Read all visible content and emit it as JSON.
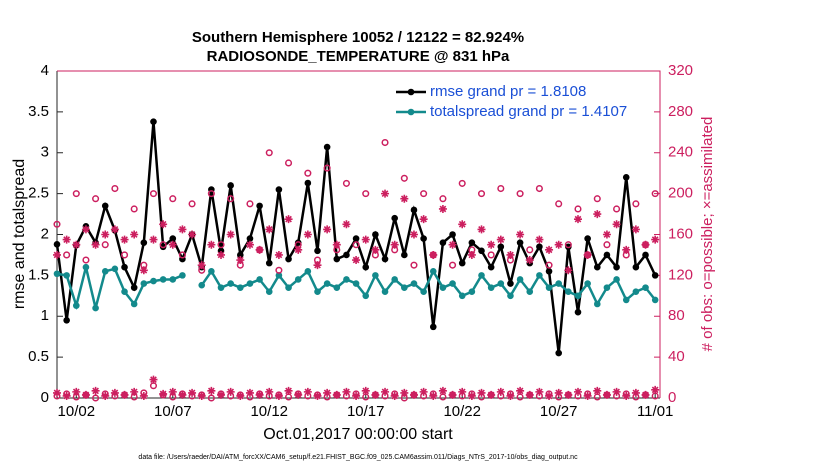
{
  "chart_data": {
    "type": "line",
    "title": "Southern Hemisphere 10052 / 12122 = 82.924%",
    "subtitle": "RADIOSONDE_TEMPERATURE @ 831 hPa",
    "y_label": "rmse and totalspread",
    "y2_label": "# of obs: o=possible; ×=assimilated",
    "x_label": "Oct.01,2017 00:00:00 start",
    "footnote": "data file: /Users/raeder/DAI/ATM_forcXX/CAM6_setup/f.e21.FHIST_BGC.f09_025.CAM6assim.011/Diags_NTrS_2017-10/obs_diag_output.nc",
    "x": [
      1,
      1.5,
      2,
      2.5,
      3,
      3.5,
      4,
      4.5,
      5,
      5.5,
      6,
      6.5,
      7,
      7.5,
      8,
      8.5,
      9,
      9.5,
      10,
      10.5,
      11,
      11.5,
      12,
      12.5,
      13,
      13.5,
      14,
      14.5,
      15,
      15.5,
      16,
      16.5,
      17,
      17.5,
      18,
      18.5,
      19,
      19.5,
      20,
      20.5,
      21,
      21.5,
      22,
      22.5,
      23,
      23.5,
      24,
      24.5,
      25,
      25.5,
      26,
      26.5,
      27,
      27.5,
      28,
      28.5,
      29,
      29.5,
      30,
      30.5,
      31,
      31.5,
      32
    ],
    "xlim": [
      1,
      32.25
    ],
    "xticks": [
      {
        "value": 2,
        "label": "10/02"
      },
      {
        "value": 7,
        "label": "10/07"
      },
      {
        "value": 12,
        "label": "10/12"
      },
      {
        "value": 17,
        "label": "10/17"
      },
      {
        "value": 22,
        "label": "10/22"
      },
      {
        "value": 27,
        "label": "10/27"
      },
      {
        "value": 32,
        "label": "11/01"
      }
    ],
    "ylim": [
      0,
      4
    ],
    "yticks": [
      0,
      0.5,
      1,
      1.5,
      2,
      2.5,
      3,
      3.5,
      4
    ],
    "y2lim": [
      0,
      320
    ],
    "y2ticks": [
      0,
      40,
      80,
      120,
      160,
      200,
      240,
      280,
      320
    ],
    "legend": "upper right",
    "series": [
      {
        "name": "rmse grand pr = 1.8108",
        "color": "#000000",
        "marker": "dot",
        "values": [
          1.88,
          0.95,
          1.87,
          2.1,
          1.9,
          2.35,
          2.05,
          1.6,
          1.35,
          1.9,
          3.38,
          1.85,
          1.95,
          1.7,
          2.0,
          1.6,
          2.55,
          1.8,
          2.6,
          1.75,
          1.95,
          2.35,
          1.65,
          2.55,
          1.7,
          1.9,
          2.63,
          1.8,
          3.07,
          1.7,
          1.75,
          1.95,
          1.6,
          2.0,
          1.7,
          2.2,
          1.75,
          2.3,
          1.95,
          0.87,
          1.9,
          2.0,
          1.65,
          1.9,
          1.8,
          1.6,
          1.85,
          1.4,
          1.9,
          1.65,
          1.85,
          1.55,
          0.55,
          1.85,
          1.05,
          1.95,
          1.6,
          1.75,
          1.6,
          2.7,
          1.6,
          1.75,
          1.5
        ]
      },
      {
        "name": "totalspread grand pr = 1.4107",
        "color": "#138a8c",
        "marker": "dot",
        "values": [
          1.52,
          1.5,
          1.13,
          1.6,
          1.1,
          1.55,
          1.58,
          1.3,
          1.15,
          1.4,
          1.43,
          1.45,
          1.45,
          1.5,
          null,
          1.38,
          1.55,
          1.35,
          1.4,
          1.35,
          1.4,
          1.45,
          1.3,
          1.5,
          1.35,
          1.45,
          1.55,
          1.3,
          1.4,
          1.35,
          1.45,
          1.4,
          1.25,
          1.5,
          1.3,
          1.45,
          1.35,
          1.4,
          1.3,
          1.55,
          1.35,
          1.4,
          1.25,
          1.3,
          1.5,
          1.35,
          1.4,
          1.25,
          1.45,
          1.3,
          1.5,
          1.35,
          1.4,
          1.3,
          1.25,
          1.4,
          1.15,
          1.35,
          1.45,
          1.2,
          1.3,
          1.35,
          1.2
        ]
      },
      {
        "color": "#cc1f5f",
        "marker": "circle",
        "axis": "y2",
        "values": [
          170,
          140,
          200,
          135,
          195,
          150,
          205,
          140,
          185,
          130,
          200,
          150,
          195,
          140,
          190,
          125,
          200,
          150,
          195,
          130,
          190,
          145,
          240,
          125,
          230,
          150,
          220,
          135,
          225,
          145,
          210,
          150,
          200,
          140,
          250,
          145,
          215,
          130,
          200,
          140,
          195,
          130,
          210,
          145,
          200,
          140,
          205,
          135,
          200,
          145,
          205,
          130,
          190,
          150,
          185,
          140,
          195,
          150,
          185,
          140,
          190,
          150,
          200
        ]
      },
      {
        "color": "#cc1f5f",
        "marker": "asterisk",
        "axis": "y2",
        "values": [
          140,
          155,
          150,
          165,
          150,
          160,
          165,
          155,
          160,
          125,
          155,
          170,
          150,
          165,
          160,
          130,
          150,
          140,
          160,
          135,
          150,
          145,
          165,
          140,
          175,
          145,
          160,
          130,
          165,
          150,
          170,
          135,
          155,
          145,
          200,
          150,
          195,
          160,
          175,
          140,
          185,
          150,
          170,
          140,
          165,
          150,
          155,
          140,
          160,
          135,
          155,
          145,
          150,
          125,
          175,
          140,
          180,
          160,
          170,
          145,
          165,
          150,
          155
        ]
      },
      {
        "color": "#cc1f5f",
        "marker": "circle",
        "axis": "y2",
        "values": [
          2,
          4,
          1,
          3,
          0,
          4,
          2,
          3,
          1,
          5,
          12,
          3,
          1,
          4,
          2,
          3,
          0,
          4,
          2,
          3,
          1,
          4,
          2,
          3,
          1,
          4,
          2,
          3,
          1,
          3,
          2,
          4,
          1,
          3,
          2,
          4,
          0,
          3,
          2,
          4,
          1,
          3,
          2,
          4,
          1,
          3,
          2,
          4,
          1,
          3,
          2,
          4,
          1,
          3,
          2,
          4,
          1,
          3,
          2,
          4,
          1,
          3,
          2
        ]
      },
      {
        "color": "#cc1f5f",
        "marker": "asterisk",
        "axis": "y2",
        "values": [
          5,
          2,
          6,
          3,
          7,
          2,
          5,
          3,
          6,
          2,
          18,
          4,
          6,
          3,
          5,
          2,
          7,
          3,
          6,
          2,
          5,
          3,
          6,
          2,
          7,
          3,
          6,
          2,
          5,
          3,
          6,
          2,
          7,
          3,
          6,
          2,
          5,
          3,
          6,
          2,
          7,
          3,
          6,
          2,
          5,
          3,
          6,
          2,
          7,
          3,
          6,
          2,
          5,
          3,
          6,
          2,
          7,
          3,
          6,
          2,
          5,
          3,
          8
        ]
      }
    ]
  }
}
